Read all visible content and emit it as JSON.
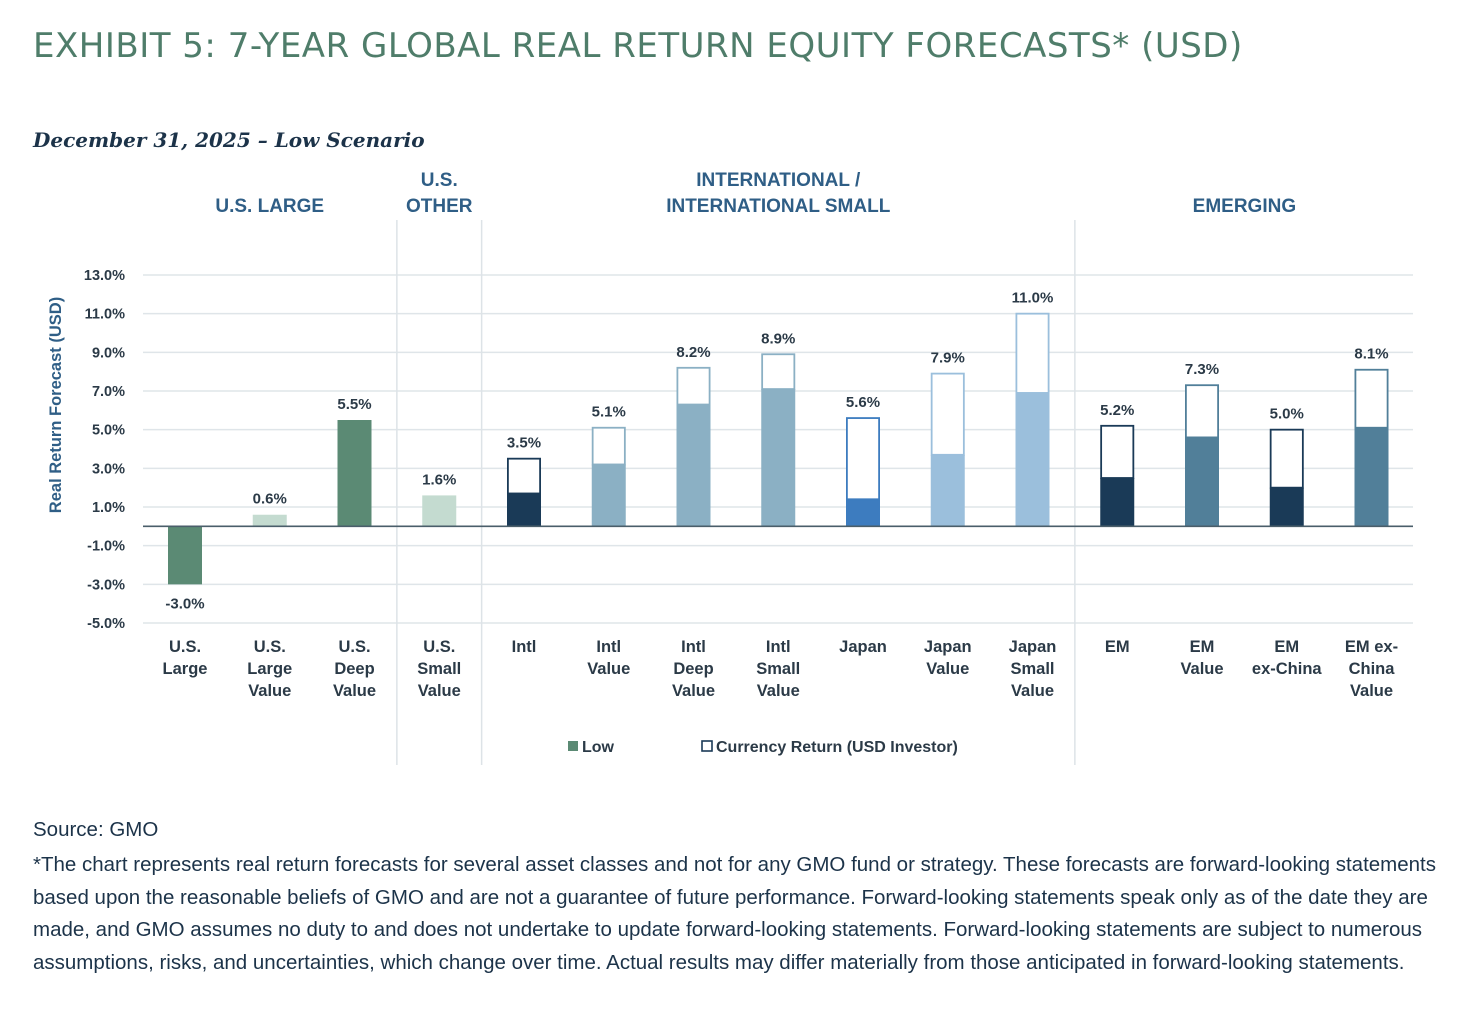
{
  "title": "EXHIBIT 5: 7-YEAR GLOBAL REAL RETURN EQUITY FORECASTS* (USD)",
  "subtitle": "December 31, 2025 – Low Scenario",
  "source": "Source: GMO",
  "footnote": "*The chart represents real return forecasts for several asset classes and not for any GMO fund or strategy. These forecasts are forward-looking statements based upon the reasonable beliefs of GMO and are not a guarantee of future performance. Forward-looking statements speak only as of the date they are made, and GMO assumes no duty to and does not undertake to update forward-looking statements. Forward-looking statements are subject to numerous assumptions, risks, and uncertainties, which change over time. Actual results may differ materially from those anticipated in forward-looking statements.",
  "chart_data": {
    "type": "bar",
    "stacked": true,
    "ylabel": "Real Return Forecast (USD)",
    "ylim": [
      -5,
      13
    ],
    "yticks": [
      "13.0%",
      "11.0%",
      "9.0%",
      "7.0%",
      "5.0%",
      "3.0%",
      "1.0%",
      "-1.0%",
      "-3.0%",
      "-5.0%"
    ],
    "grid": true,
    "legend_position": "bottom",
    "groups": [
      {
        "label": [
          "U.S. LARGE"
        ],
        "start": 0,
        "end": 2
      },
      {
        "label": [
          "U.S.",
          "OTHER"
        ],
        "start": 3,
        "end": 3
      },
      {
        "label": [
          "INTERNATIONAL /",
          "INTERNATIONAL SMALL"
        ],
        "start": 4,
        "end": 10
      },
      {
        "label": [
          "EMERGING"
        ],
        "start": 11,
        "end": 14
      }
    ],
    "legend": [
      {
        "name": "Low",
        "color": "#5b8a74"
      },
      {
        "name": "Currency Return (USD Investor)",
        "color": "#ffffff"
      }
    ],
    "categories": [
      {
        "label": [
          "U.S.",
          "Large"
        ],
        "low": -3.0,
        "currency": 0,
        "total": "-3.0%",
        "color": "#5b8a74"
      },
      {
        "label": [
          "U.S.",
          "Large",
          "Value"
        ],
        "low": 0.6,
        "currency": 0,
        "total": "0.6%",
        "color": "#c4dbd0"
      },
      {
        "label": [
          "U.S.",
          "Deep",
          "Value"
        ],
        "low": 5.5,
        "currency": 0,
        "total": "5.5%",
        "color": "#5b8a74"
      },
      {
        "label": [
          "U.S.",
          "Small",
          "Value"
        ],
        "low": 1.6,
        "currency": 0,
        "total": "1.6%",
        "color": "#c4dbd0"
      },
      {
        "label": [
          "Intl"
        ],
        "low": 1.7,
        "currency": 1.8,
        "total": "3.5%",
        "color": "#1a3a57"
      },
      {
        "label": [
          "Intl",
          "Value"
        ],
        "low": 3.2,
        "currency": 1.9,
        "total": "5.1%",
        "color": "#8bb0c4"
      },
      {
        "label": [
          "Intl",
          "Deep",
          "Value"
        ],
        "low": 6.3,
        "currency": 1.9,
        "total": "8.2%",
        "color": "#8bb0c4"
      },
      {
        "label": [
          "Intl",
          "Small",
          "Value"
        ],
        "low": 7.1,
        "currency": 1.8,
        "total": "8.9%",
        "color": "#8bb0c4"
      },
      {
        "label": [
          "Japan"
        ],
        "low": 1.4,
        "currency": 4.2,
        "total": "5.6%",
        "color": "#3d7cbf"
      },
      {
        "label": [
          "Japan",
          "Value"
        ],
        "low": 3.7,
        "currency": 4.2,
        "total": "7.9%",
        "color": "#9bbfdc"
      },
      {
        "label": [
          "Japan",
          "Small",
          "Value"
        ],
        "low": 6.9,
        "currency": 4.1,
        "total": "11.0%",
        "color": "#9bbfdc"
      },
      {
        "label": [
          "EM"
        ],
        "low": 2.5,
        "currency": 2.7,
        "total": "5.2%",
        "color": "#1a3a57"
      },
      {
        "label": [
          "EM",
          "Value"
        ],
        "low": 4.6,
        "currency": 2.7,
        "total": "7.3%",
        "color": "#517f99"
      },
      {
        "label": [
          "EM",
          "ex-China"
        ],
        "low": 2.0,
        "currency": 3.0,
        "total": "5.0%",
        "color": "#1a3a57"
      },
      {
        "label": [
          "EM ex-",
          "China",
          "Value"
        ],
        "low": 5.1,
        "currency": 3.0,
        "total": "8.1%",
        "color": "#517f99"
      }
    ]
  }
}
